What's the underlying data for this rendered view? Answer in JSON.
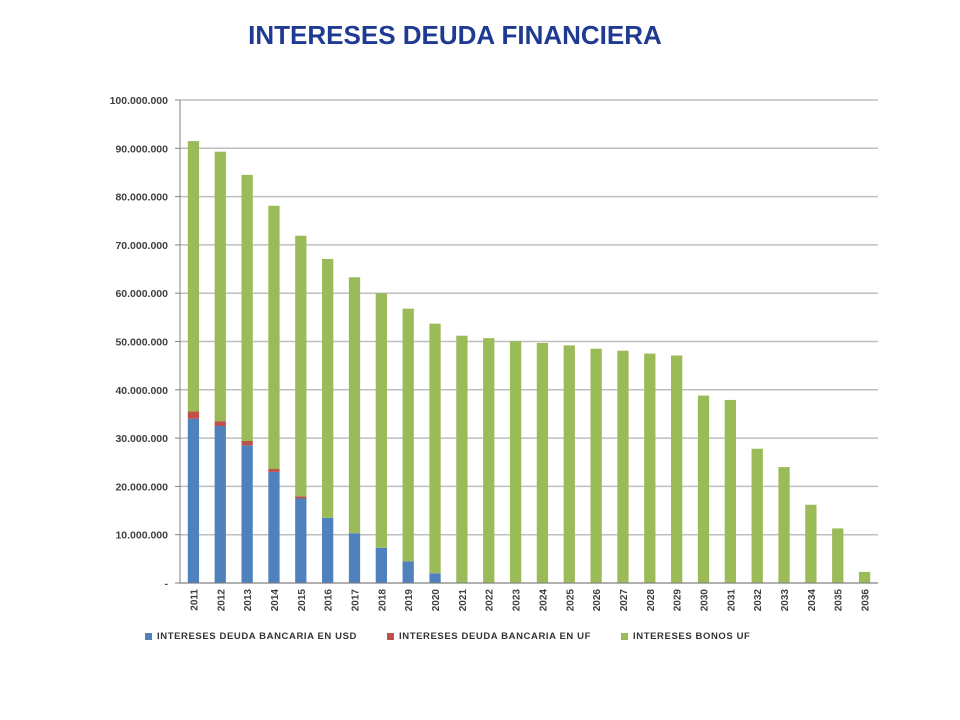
{
  "title": "INTERESES DEUDA FINANCIERA",
  "colors": {
    "usd": "#4f81bd",
    "uf_bank": "#c0504d",
    "bonos": "#9bbb59",
    "grid": "#bfbfbf",
    "title": "#1f3a93"
  },
  "chart_data": {
    "type": "bar",
    "stacked": true,
    "title": "INTERESES DEUDA FINANCIERA",
    "categories": [
      "2011",
      "2012",
      "2013",
      "2014",
      "2015",
      "2016",
      "2017",
      "2018",
      "2019",
      "2020",
      "2021",
      "2022",
      "2023",
      "2024",
      "2025",
      "2026",
      "2027",
      "2028",
      "2029",
      "2030",
      "2031",
      "2032",
      "2033",
      "2034",
      "2035",
      "2036"
    ],
    "series": [
      {
        "name": "INTERESES  DEUDA  BANCARIA  EN  USD",
        "color": "#4f81bd",
        "values": [
          34000000,
          32500000,
          28500000,
          23000000,
          17500000,
          13500000,
          10300000,
          7300000,
          4500000,
          2000000,
          0,
          0,
          0,
          0,
          0,
          0,
          0,
          0,
          0,
          0,
          0,
          0,
          0,
          0,
          0,
          0
        ]
      },
      {
        "name": "INTERESES  DEUDA  BANCARIA  EN  UF",
        "color": "#c0504d",
        "values": [
          1500000,
          1000000,
          900000,
          600000,
          400000,
          0,
          0,
          0,
          0,
          0,
          0,
          0,
          0,
          0,
          0,
          0,
          0,
          0,
          0,
          0,
          0,
          0,
          0,
          0,
          0,
          0
        ]
      },
      {
        "name": "INTERESES  BONOS  UF",
        "color": "#9bbb59",
        "values": [
          56000000,
          55800000,
          55100000,
          54500000,
          54000000,
          53600000,
          53000000,
          52700000,
          52300000,
          51700000,
          51200000,
          50700000,
          50100000,
          49700000,
          49200000,
          48500000,
          48100000,
          47500000,
          47100000,
          38800000,
          37900000,
          27800000,
          24000000,
          16200000,
          11300000,
          2300000
        ]
      }
    ],
    "yticks": [
      "-",
      "10.000.000",
      "20.000.000",
      "30.000.000",
      "40.000.000",
      "50.000.000",
      "60.000.000",
      "70.000.000",
      "80.000.000",
      "90.000.000",
      "100.000.000"
    ],
    "ylim": [
      0,
      100000000
    ],
    "grid": true,
    "legend": "bottom"
  }
}
